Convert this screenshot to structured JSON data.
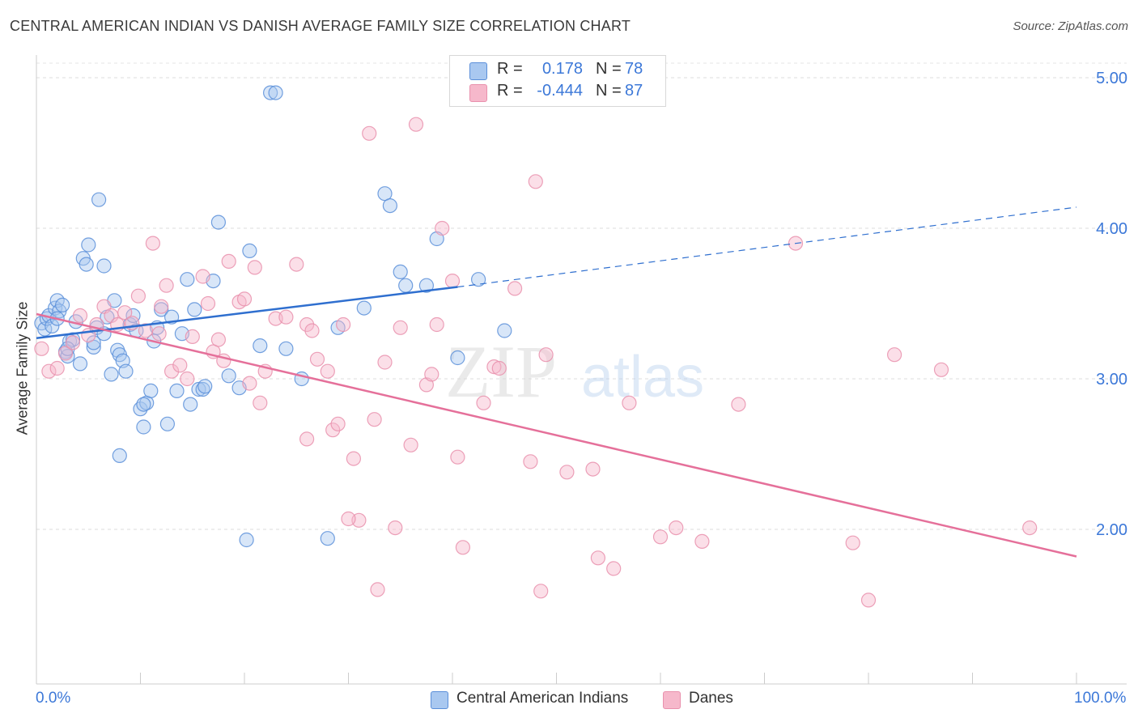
{
  "title": "CENTRAL AMERICAN INDIAN VS DANISH AVERAGE FAMILY SIZE CORRELATION CHART",
  "source": "Source: ZipAtlas.com",
  "watermark": {
    "zip": "ZIP",
    "atlas": "atlas"
  },
  "legend": {
    "rows": [
      {
        "r_label": "R =",
        "r_value": "0.178",
        "n_label": "N =",
        "n_value": "78",
        "color": "#a9c8f0"
      },
      {
        "r_label": "R =",
        "r_value": "-0.444",
        "n_label": "N =",
        "n_value": "87",
        "color": "#f6b8cb"
      }
    ]
  },
  "bottom_legend": [
    {
      "label": "Central American Indians",
      "color": "#a9c8f0"
    },
    {
      "label": "Danes",
      "color": "#f6b8cb"
    }
  ],
  "x_axis": {
    "min_label": "0.0%",
    "max_label": "100.0%"
  },
  "y_axis_label": "Average Family Size",
  "chart_data": {
    "type": "scatter",
    "xlim": [
      0,
      100
    ],
    "ylim": [
      1.3,
      5.2
    ],
    "y_ticks": [
      {
        "value": 2.0,
        "label": "2.00"
      },
      {
        "value": 3.0,
        "label": "3.00"
      },
      {
        "value": 4.0,
        "label": "4.00"
      },
      {
        "value": 5.0,
        "label": "5.00"
      }
    ],
    "grid": true,
    "series": [
      {
        "name": "Central American Indians",
        "color": "#5b8fd9",
        "fill": "#a9c8f0",
        "trend": {
          "x0": 0,
          "y0": 3.27,
          "x1": 40.5,
          "y1": 3.61,
          "extend_to_x": 100,
          "extend_y": 4.14,
          "color": "#2f6fcf"
        },
        "points": [
          [
            0.5,
            3.37
          ],
          [
            0.8,
            3.33
          ],
          [
            1.0,
            3.4
          ],
          [
            1.2,
            3.42
          ],
          [
            1.5,
            3.35
          ],
          [
            1.8,
            3.47
          ],
          [
            2.0,
            3.52
          ],
          [
            2.2,
            3.45
          ],
          [
            2.5,
            3.49
          ],
          [
            2.8,
            3.18
          ],
          [
            3.0,
            3.15
          ],
          [
            3.2,
            3.25
          ],
          [
            3.5,
            3.26
          ],
          [
            3.8,
            3.38
          ],
          [
            4.2,
            3.1
          ],
          [
            4.5,
            3.8
          ],
          [
            4.8,
            3.76
          ],
          [
            5.0,
            3.89
          ],
          [
            5.5,
            3.21
          ],
          [
            5.8,
            3.34
          ],
          [
            6.0,
            4.19
          ],
          [
            6.5,
            3.75
          ],
          [
            6.8,
            3.41
          ],
          [
            7.2,
            3.03
          ],
          [
            7.5,
            3.52
          ],
          [
            7.8,
            3.19
          ],
          [
            8.0,
            3.16
          ],
          [
            8.3,
            3.12
          ],
          [
            8.6,
            3.05
          ],
          [
            9.0,
            3.36
          ],
          [
            9.3,
            3.42
          ],
          [
            9.6,
            3.32
          ],
          [
            10.0,
            2.8
          ],
          [
            10.3,
            2.68
          ],
          [
            10.6,
            2.84
          ],
          [
            11.0,
            2.92
          ],
          [
            11.3,
            3.25
          ],
          [
            11.6,
            3.34
          ],
          [
            12.0,
            3.46
          ],
          [
            12.6,
            2.7
          ],
          [
            13.0,
            3.41
          ],
          [
            13.5,
            2.92
          ],
          [
            14.0,
            3.3
          ],
          [
            14.5,
            3.66
          ],
          [
            14.8,
            2.83
          ],
          [
            15.2,
            3.46
          ],
          [
            15.6,
            2.93
          ],
          [
            16.0,
            2.93
          ],
          [
            16.2,
            2.95
          ],
          [
            17.0,
            3.65
          ],
          [
            17.5,
            4.04
          ],
          [
            18.5,
            3.02
          ],
          [
            19.5,
            2.94
          ],
          [
            20.2,
            1.93
          ],
          [
            20.5,
            3.85
          ],
          [
            21.5,
            3.22
          ],
          [
            22.5,
            4.9
          ],
          [
            23.0,
            4.9
          ],
          [
            24.0,
            3.2
          ],
          [
            25.5,
            3.0
          ],
          [
            28.0,
            1.94
          ],
          [
            29.0,
            3.34
          ],
          [
            31.5,
            3.47
          ],
          [
            33.5,
            4.23
          ],
          [
            34.0,
            4.15
          ],
          [
            35.0,
            3.71
          ],
          [
            35.5,
            3.62
          ],
          [
            37.5,
            3.62
          ],
          [
            38.5,
            3.93
          ],
          [
            40.5,
            3.14
          ],
          [
            42.5,
            3.66
          ],
          [
            45.0,
            3.32
          ],
          [
            8.0,
            2.49
          ],
          [
            10.3,
            2.83
          ],
          [
            3.0,
            3.2
          ],
          [
            6.5,
            3.3
          ],
          [
            2.0,
            3.4
          ],
          [
            5.5,
            3.24
          ]
        ]
      },
      {
        "name": "Danes",
        "color": "#e991ad",
        "fill": "#f6b8cb",
        "trend": {
          "x0": 0,
          "y0": 3.43,
          "x1": 100,
          "y1": 1.82,
          "color": "#e5709a"
        },
        "points": [
          [
            0.5,
            3.2
          ],
          [
            1.2,
            3.05
          ],
          [
            2.0,
            3.07
          ],
          [
            2.8,
            3.17
          ],
          [
            3.5,
            3.24
          ],
          [
            4.2,
            3.42
          ],
          [
            5.0,
            3.29
          ],
          [
            5.8,
            3.36
          ],
          [
            6.5,
            3.48
          ],
          [
            7.2,
            3.42
          ],
          [
            7.8,
            3.36
          ],
          [
            8.5,
            3.44
          ],
          [
            9.2,
            3.37
          ],
          [
            9.8,
            3.55
          ],
          [
            10.5,
            3.32
          ],
          [
            11.2,
            3.9
          ],
          [
            11.8,
            3.3
          ],
          [
            12.5,
            3.62
          ],
          [
            13.0,
            3.05
          ],
          [
            13.8,
            3.09
          ],
          [
            14.5,
            3.0
          ],
          [
            15.0,
            3.28
          ],
          [
            16.0,
            3.68
          ],
          [
            16.5,
            3.5
          ],
          [
            17.0,
            3.18
          ],
          [
            17.5,
            3.26
          ],
          [
            18.0,
            3.12
          ],
          [
            18.5,
            3.78
          ],
          [
            19.5,
            3.51
          ],
          [
            20.0,
            3.53
          ],
          [
            20.5,
            2.97
          ],
          [
            21.0,
            3.74
          ],
          [
            21.5,
            2.84
          ],
          [
            22.0,
            3.05
          ],
          [
            23.0,
            3.4
          ],
          [
            24.0,
            3.41
          ],
          [
            25.0,
            3.76
          ],
          [
            26.0,
            3.36
          ],
          [
            26.5,
            3.32
          ],
          [
            27.0,
            3.13
          ],
          [
            28.0,
            3.05
          ],
          [
            28.5,
            2.66
          ],
          [
            29.0,
            2.7
          ],
          [
            29.5,
            3.36
          ],
          [
            30.5,
            2.47
          ],
          [
            31.0,
            2.06
          ],
          [
            32.0,
            4.63
          ],
          [
            32.5,
            2.73
          ],
          [
            33.5,
            3.11
          ],
          [
            34.5,
            2.01
          ],
          [
            35.0,
            3.34
          ],
          [
            36.0,
            2.56
          ],
          [
            36.5,
            4.69
          ],
          [
            37.5,
            2.96
          ],
          [
            38.0,
            3.03
          ],
          [
            38.5,
            3.36
          ],
          [
            39.0,
            4.0
          ],
          [
            40.0,
            3.65
          ],
          [
            40.5,
            2.48
          ],
          [
            41.0,
            1.88
          ],
          [
            43.0,
            2.84
          ],
          [
            44.0,
            3.08
          ],
          [
            44.5,
            3.07
          ],
          [
            46.0,
            3.6
          ],
          [
            47.5,
            2.45
          ],
          [
            48.0,
            4.31
          ],
          [
            48.5,
            1.59
          ],
          [
            49.0,
            3.16
          ],
          [
            51.0,
            2.38
          ],
          [
            53.5,
            2.4
          ],
          [
            54.0,
            1.81
          ],
          [
            55.5,
            1.74
          ],
          [
            57.0,
            2.84
          ],
          [
            60.0,
            1.95
          ],
          [
            61.5,
            2.01
          ],
          [
            64.0,
            1.92
          ],
          [
            67.5,
            2.83
          ],
          [
            73.0,
            3.9
          ],
          [
            78.5,
            1.91
          ],
          [
            80.0,
            1.53
          ],
          [
            82.5,
            3.16
          ],
          [
            87.0,
            3.06
          ],
          [
            95.5,
            2.01
          ],
          [
            32.8,
            1.6
          ],
          [
            26.0,
            2.6
          ],
          [
            30.0,
            2.07
          ],
          [
            12.0,
            3.48
          ]
        ]
      }
    ]
  }
}
